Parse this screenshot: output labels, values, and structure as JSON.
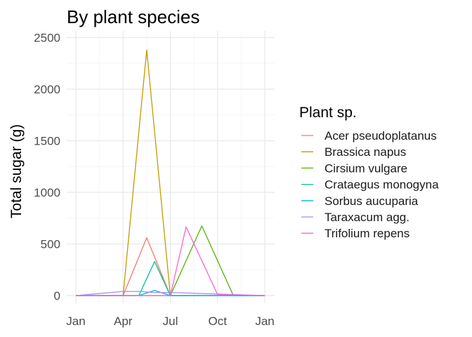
{
  "chart_data": {
    "type": "line",
    "title": "By plant species",
    "xlabel": "",
    "ylabel": "Total sugar (g)",
    "x_ticks": [
      {
        "label": "Jan",
        "month": 0
      },
      {
        "label": "Apr",
        "month": 3
      },
      {
        "label": "Jul",
        "month": 6
      },
      {
        "label": "Oct",
        "month": 9
      },
      {
        "label": "Jan",
        "month": 12
      }
    ],
    "y_ticks": [
      0,
      500,
      1000,
      1500,
      2000,
      2500
    ],
    "xlim": [
      0,
      12.3
    ],
    "ylim": [
      0,
      2500
    ],
    "grid": true,
    "legend_title": "Plant sp.",
    "legend_position": "right",
    "series": [
      {
        "name": "Acer pseudoplatanus",
        "color": "#F8766D",
        "points": [
          [
            0,
            0
          ],
          [
            3,
            0
          ],
          [
            4.5,
            560
          ],
          [
            6,
            0
          ],
          [
            9,
            0
          ],
          [
            12,
            0
          ]
        ]
      },
      {
        "name": "Brassica napus",
        "color": "#C49A00",
        "points": [
          [
            0,
            0
          ],
          [
            3,
            0
          ],
          [
            4.5,
            2380
          ],
          [
            6,
            0
          ],
          [
            9,
            0
          ],
          [
            12,
            0
          ]
        ]
      },
      {
        "name": "Cirsium vulgare",
        "color": "#53B400",
        "points": [
          [
            0,
            0
          ],
          [
            3,
            0
          ],
          [
            4.5,
            0
          ],
          [
            6,
            0
          ],
          [
            8,
            675
          ],
          [
            10,
            0
          ],
          [
            12,
            0
          ]
        ]
      },
      {
        "name": "Crataegus monogyna",
        "color": "#00C094",
        "points": [
          [
            0,
            0
          ],
          [
            3,
            0
          ],
          [
            4,
            0
          ],
          [
            5,
            330
          ],
          [
            6,
            0
          ],
          [
            9,
            0
          ],
          [
            12,
            0
          ]
        ]
      },
      {
        "name": "Sorbus aucuparia",
        "color": "#00B6EB",
        "points": [
          [
            0,
            0
          ],
          [
            3,
            0
          ],
          [
            4,
            0
          ],
          [
            5,
            50
          ],
          [
            6,
            0
          ],
          [
            9,
            0
          ],
          [
            12,
            0
          ]
        ]
      },
      {
        "name": "Taraxacum agg.",
        "color": "#A58AFF",
        "points": [
          [
            0,
            0
          ],
          [
            3,
            40
          ],
          [
            4,
            40
          ],
          [
            5,
            30
          ],
          [
            6,
            30
          ],
          [
            9,
            15
          ],
          [
            12,
            0
          ]
        ]
      },
      {
        "name": "Trifolium repens",
        "color": "#FB61D7",
        "points": [
          [
            0,
            0
          ],
          [
            3,
            0
          ],
          [
            4.5,
            0
          ],
          [
            6,
            0
          ],
          [
            7,
            665
          ],
          [
            9,
            10
          ],
          [
            12,
            0
          ]
        ]
      }
    ]
  }
}
